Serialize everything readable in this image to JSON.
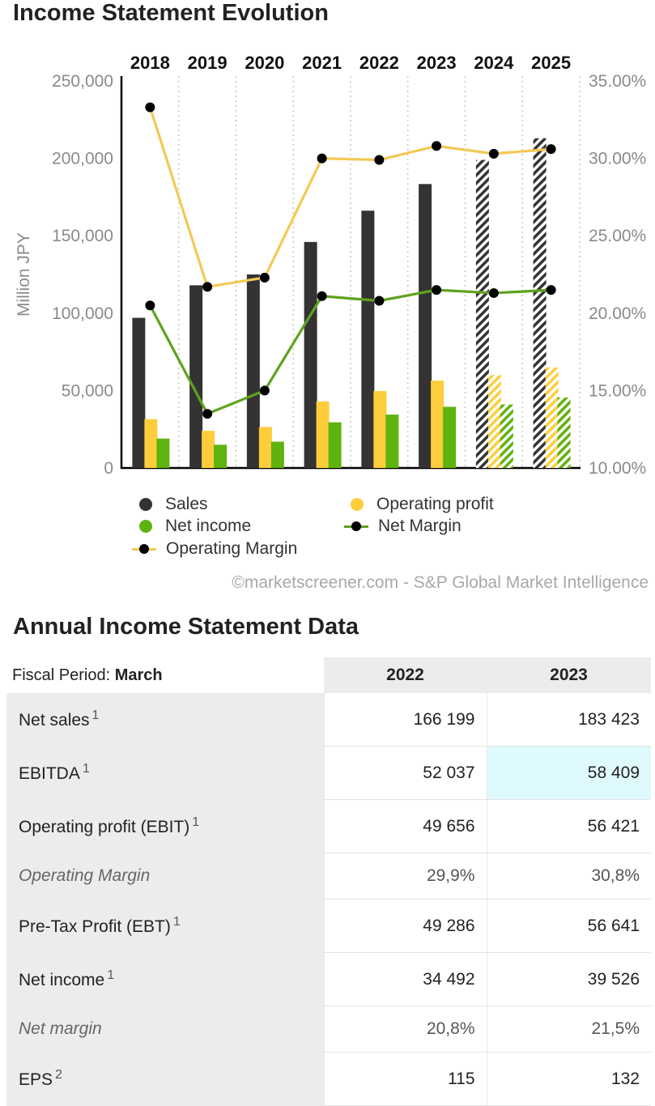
{
  "chart_section": {
    "title": "Income Statement Evolution",
    "source": "©marketscreener.com - S&P Global Market Intelligence"
  },
  "chart_data": {
    "type": "bar",
    "categories": [
      "2018",
      "2019",
      "2020",
      "2021",
      "2022",
      "2023",
      "2024",
      "2025"
    ],
    "estimated_from_index": 6,
    "ylabel": "Million JPY",
    "ylim": [
      0,
      250000
    ],
    "y_ticks": [
      "0",
      "50,000",
      "100,000",
      "150,000",
      "200,000",
      "250,000"
    ],
    "y2lim": [
      10,
      35
    ],
    "y2_ticks": [
      "10.00%",
      "15.00%",
      "20.00%",
      "25.00%",
      "30.00%",
      "35.00%"
    ],
    "series": [
      {
        "name": "Sales",
        "kind": "bar",
        "values": [
          97000,
          118000,
          125000,
          146000,
          166199,
          183423,
          199000,
          213000
        ]
      },
      {
        "name": "Operating profit",
        "kind": "bar",
        "values": [
          31500,
          24000,
          26500,
          43000,
          49656,
          56421,
          60000,
          65000
        ]
      },
      {
        "name": "Net income",
        "kind": "bar",
        "values": [
          19000,
          15000,
          17000,
          29500,
          34492,
          39526,
          41000,
          45500
        ]
      },
      {
        "name": "Operating Margin",
        "kind": "line",
        "axis": "y2",
        "values": [
          33.3,
          21.7,
          22.3,
          30.0,
          29.9,
          30.8,
          30.3,
          30.6
        ]
      },
      {
        "name": "Net Margin",
        "kind": "line",
        "axis": "y2",
        "values": [
          20.5,
          13.5,
          15.0,
          21.1,
          20.8,
          21.5,
          21.3,
          21.5
        ]
      }
    ],
    "legend": [
      "Sales",
      "Operating profit",
      "Net income",
      "Net Margin",
      "Operating Margin"
    ]
  },
  "colors": {
    "sales": "#333333",
    "operating_profit": "#fdcd3b",
    "net_income": "#5fb30f",
    "operating_margin_line": "#f3c955",
    "net_margin_line": "#5fa21e",
    "highlight": "#dffafc"
  },
  "table_section": {
    "title": "Annual Income Statement Data",
    "period_label": "Fiscal Period:",
    "period_value": "March",
    "col_2022": "2022",
    "col_2023": "2023",
    "rows": [
      {
        "label": "Net sales",
        "note": "1",
        "v2022": "166 199",
        "v2023": "183 423"
      },
      {
        "label": "EBITDA",
        "note": "1",
        "v2022": "52 037",
        "v2023": "58 409"
      },
      {
        "label": "Operating profit (EBIT)",
        "note": "1",
        "v2022": "49 656",
        "v2023": "56 421"
      },
      {
        "label": "Operating Margin",
        "v2022": "29,9%",
        "v2023": "30,8%"
      },
      {
        "label": "Pre-Tax Profit (EBT)",
        "note": "1",
        "v2022": "49 286",
        "v2023": "56 641"
      },
      {
        "label": "Net income",
        "note": "1",
        "v2022": "34 492",
        "v2023": "39 526"
      },
      {
        "label": "Net margin",
        "v2022": "20,8%",
        "v2023": "21,5%"
      },
      {
        "label": "EPS",
        "note": "2",
        "v2022": "115",
        "v2023": "132"
      }
    ]
  }
}
